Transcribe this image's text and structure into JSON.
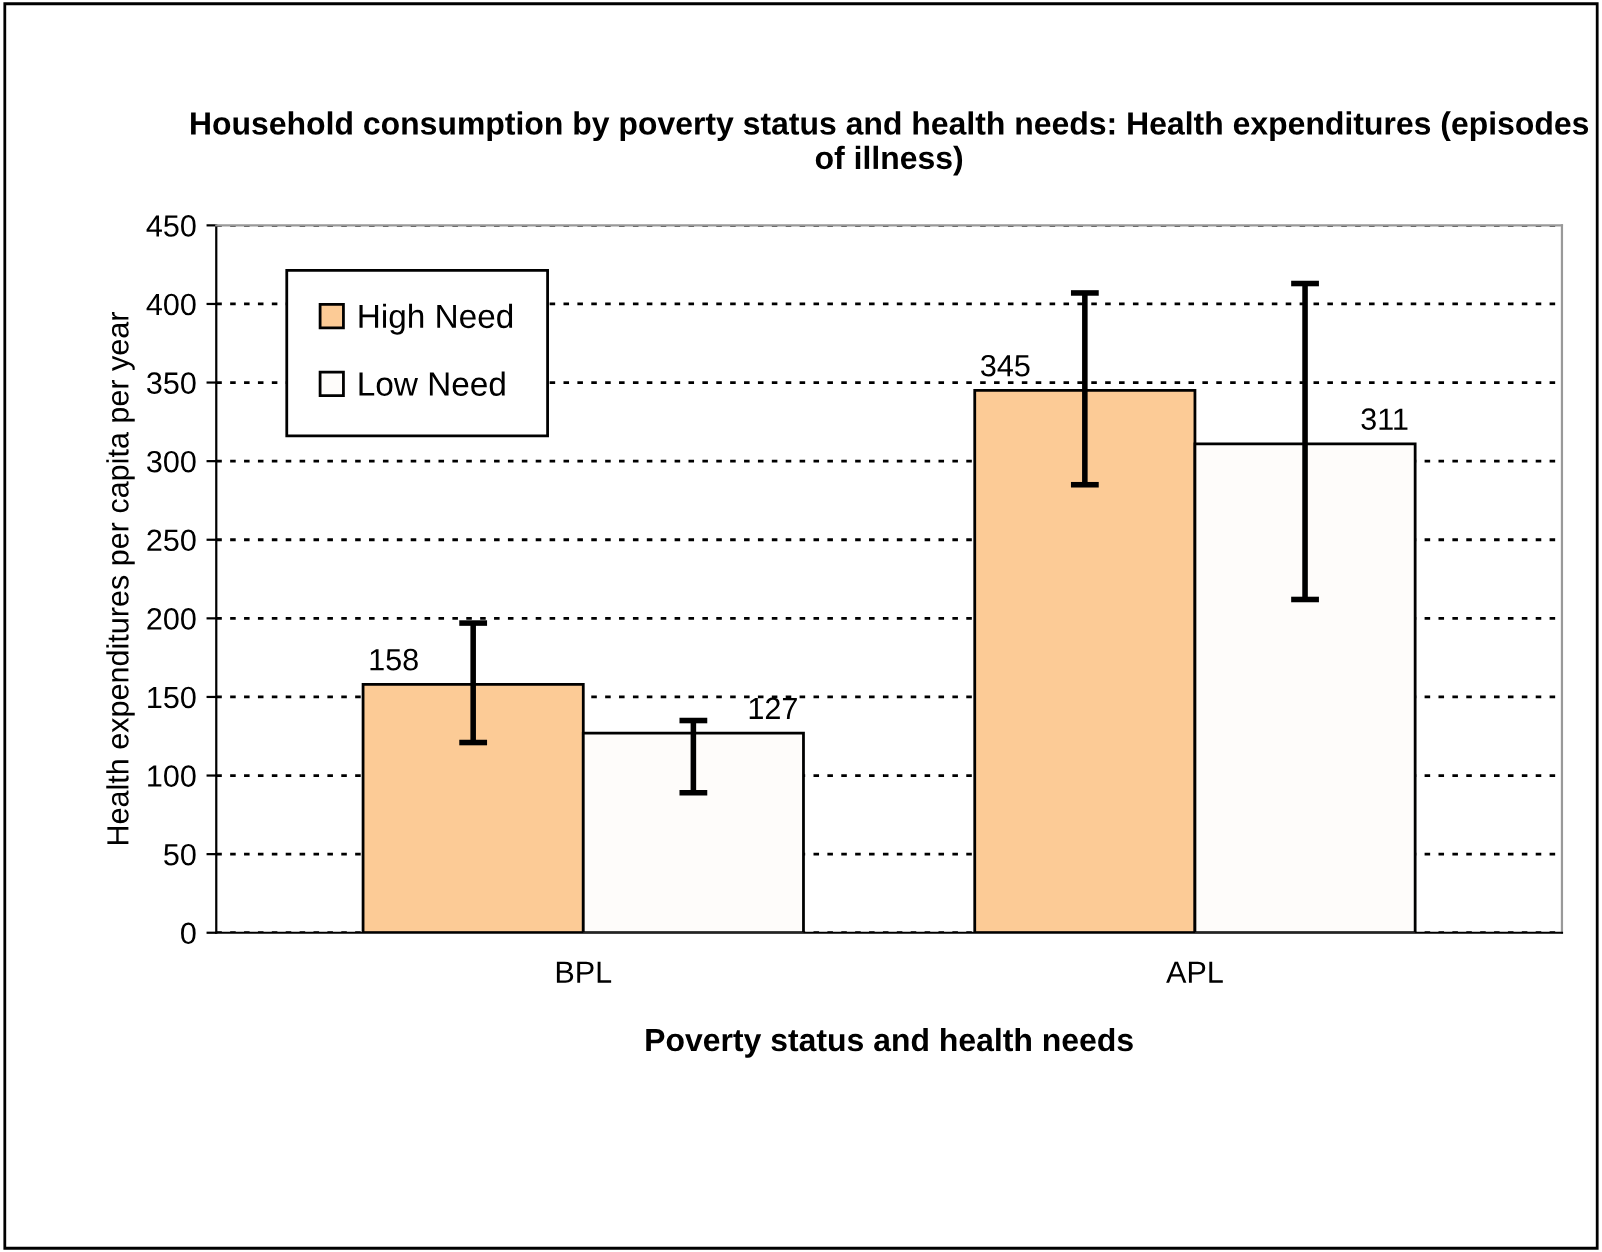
{
  "chart_data": {
    "type": "bar",
    "title": "Household consumption by poverty status and health needs: Health expenditures (episodes of illness)",
    "xlabel": "Poverty status and health needs",
    "ylabel": "Health expenditures per capita per year",
    "categories": [
      "BPL",
      "APL"
    ],
    "series": [
      {
        "name": "High Need",
        "color": "#fccb96",
        "values": [
          158,
          345
        ],
        "errors": [
          [
            121,
            197
          ],
          [
            285,
            407
          ]
        ]
      },
      {
        "name": "Low Need",
        "color": "#fefcfa",
        "values": [
          127,
          311
        ],
        "errors": [
          [
            89,
            135
          ],
          [
            212,
            413
          ]
        ]
      }
    ],
    "ylim": [
      0,
      450
    ],
    "yticks": [
      0,
      50,
      100,
      150,
      200,
      250,
      300,
      350,
      400,
      450
    ],
    "grid": "y",
    "legend": "top left",
    "data_labels": true
  }
}
